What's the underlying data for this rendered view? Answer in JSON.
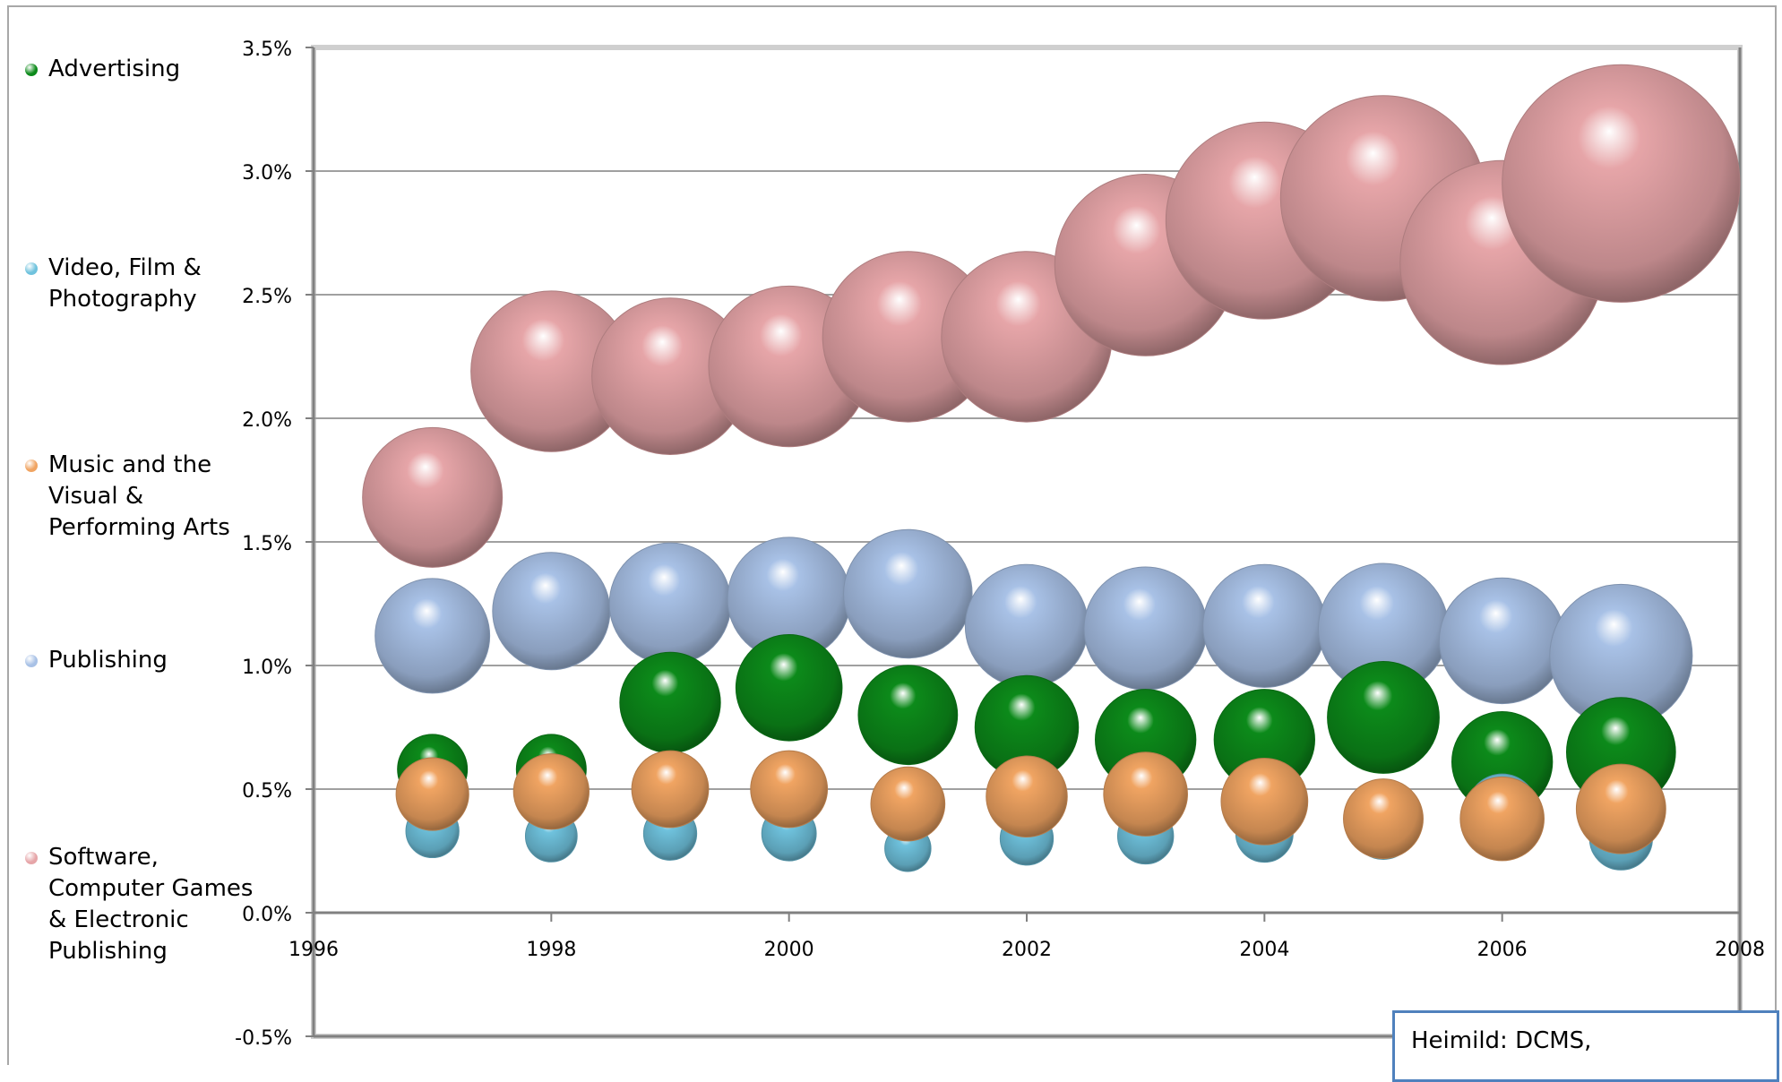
{
  "chart_data": {
    "type": "bubble",
    "title": "",
    "xlabel": "",
    "ylabel": "",
    "xlim": [
      1996,
      2008
    ],
    "ylim": [
      -0.5,
      3.5
    ],
    "x_ticks": [
      "1996",
      "1998",
      "2000",
      "2002",
      "2004",
      "2006",
      "2008"
    ],
    "y_ticks": [
      "-0.5%",
      "0.0%",
      "0.5%",
      "1.0%",
      "1.5%",
      "2.0%",
      "2.5%",
      "3.0%",
      "3.5%"
    ],
    "grid": "horizontal",
    "legend_position": "left",
    "x": [
      1997,
      1998,
      1999,
      2000,
      2001,
      2002,
      2003,
      2004,
      2005,
      2006,
      2007
    ],
    "series": [
      {
        "name": "Software, Computer Games & Electronic Publishing",
        "color": "#e6a5a8",
        "values": [
          1.68,
          2.19,
          2.17,
          2.21,
          2.33,
          2.33,
          2.62,
          2.8,
          2.89,
          2.63,
          2.95
        ],
        "sizes": [
          1.0,
          1.15,
          1.12,
          1.15,
          1.22,
          1.22,
          1.3,
          1.41,
          1.47,
          1.46,
          1.7
        ]
      },
      {
        "name": "Publishing",
        "color": "#a8c1e6",
        "values": [
          1.12,
          1.22,
          1.25,
          1.27,
          1.29,
          1.16,
          1.15,
          1.16,
          1.15,
          1.1,
          1.04
        ],
        "sizes": [
          0.82,
          0.84,
          0.87,
          0.88,
          0.92,
          0.88,
          0.88,
          0.88,
          0.93,
          0.9,
          1.02
        ]
      },
      {
        "name": "Advertising",
        "color": "#0c8a1a",
        "values": [
          0.58,
          0.58,
          0.85,
          0.91,
          0.8,
          0.75,
          0.7,
          0.7,
          0.79,
          0.61,
          0.65
        ],
        "sizes": [
          0.5,
          0.5,
          0.72,
          0.76,
          0.71,
          0.74,
          0.72,
          0.72,
          0.8,
          0.72,
          0.78
        ]
      },
      {
        "name": "Music and the Visual & Performing Arts",
        "color": "#f0a462",
        "values": [
          0.48,
          0.49,
          0.5,
          0.5,
          0.44,
          0.47,
          0.48,
          0.45,
          0.38,
          0.38,
          0.42
        ],
        "sizes": [
          0.52,
          0.54,
          0.55,
          0.55,
          0.53,
          0.58,
          0.6,
          0.62,
          0.57,
          0.6,
          0.64
        ]
      },
      {
        "name": "Video, Film & Photography",
        "color": "#6fc2dd",
        "values": [
          0.33,
          0.31,
          0.32,
          0.32,
          0.26,
          0.3,
          0.31,
          0.32,
          0.34,
          0.42,
          0.3
        ],
        "sizes": [
          0.38,
          0.37,
          0.38,
          0.39,
          0.33,
          0.38,
          0.4,
          0.41,
          0.44,
          0.5,
          0.45
        ]
      }
    ]
  },
  "legend": [
    {
      "label": "Advertising",
      "color": "#0c8a1a",
      "icon": "green-bubble-icon"
    },
    {
      "label": "Video, Film & Photography",
      "color": "#6fc2dd",
      "icon": "cyan-bubble-icon"
    },
    {
      "label": "Music and the Visual & Performing Arts",
      "color": "#f0a462",
      "icon": "orange-bubble-icon"
    },
    {
      "label": "Publishing",
      "color": "#a8c1e6",
      "icon": "blue-bubble-icon"
    },
    {
      "label": "Software, Computer Games & Electronic Publishing",
      "color": "#e6a5a8",
      "icon": "pink-bubble-icon"
    }
  ],
  "source_box": {
    "text": "Heimild: DCMS,"
  }
}
